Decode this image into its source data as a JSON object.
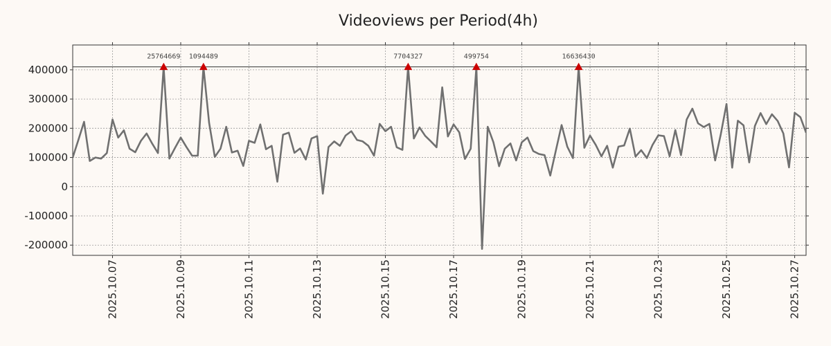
{
  "chart_data": {
    "type": "line",
    "title": "Videoviews per Period(4h)",
    "xlabel": "",
    "ylabel": "",
    "ylim": [
      -235000,
      485000
    ],
    "xlim": [
      "2025-10-05T20:00",
      "2025-10-27T08:00"
    ],
    "x_tick_labels": [
      "2025.10.07",
      "2025.10.09",
      "2025.10.11",
      "2025.10.13",
      "2025.10.15",
      "2025.10.17",
      "2025.10.19",
      "2025.10.21",
      "2025.10.23",
      "2025.10.25",
      "2025.10.27"
    ],
    "y_ticks": [
      -200000,
      -100000,
      0,
      100000,
      200000,
      300000,
      400000
    ],
    "y_tick_labels": [
      "-200000",
      "-100000",
      "0",
      "100000",
      "200000",
      "300000",
      "400000"
    ],
    "cap_line": 410000,
    "grid": true,
    "series": [
      {
        "name": "Videoviews",
        "color": "#707070",
        "x": [
          "2025-10-05T20:00",
          "2025-10-06T00:00",
          "2025-10-06T04:00",
          "2025-10-06T08:00",
          "2025-10-06T12:00",
          "2025-10-06T16:00",
          "2025-10-06T20:00",
          "2025-10-07T00:00",
          "2025-10-07T04:00",
          "2025-10-07T08:00",
          "2025-10-07T12:00",
          "2025-10-07T16:00",
          "2025-10-07T20:00",
          "2025-10-08T00:00",
          "2025-10-08T04:00",
          "2025-10-08T08:00",
          "2025-10-08T12:00",
          "2025-10-08T16:00",
          "2025-10-08T20:00",
          "2025-10-09T00:00",
          "2025-10-09T04:00",
          "2025-10-09T08:00",
          "2025-10-09T12:00",
          "2025-10-09T16:00",
          "2025-10-09T20:00",
          "2025-10-10T00:00",
          "2025-10-10T04:00",
          "2025-10-10T08:00",
          "2025-10-10T12:00",
          "2025-10-10T16:00",
          "2025-10-10T20:00",
          "2025-10-11T00:00",
          "2025-10-11T04:00",
          "2025-10-11T08:00",
          "2025-10-11T12:00",
          "2025-10-11T16:00",
          "2025-10-11T20:00",
          "2025-10-12T00:00",
          "2025-10-12T04:00",
          "2025-10-12T08:00",
          "2025-10-12T12:00",
          "2025-10-12T16:00",
          "2025-10-12T20:00",
          "2025-10-13T00:00",
          "2025-10-13T04:00",
          "2025-10-13T08:00",
          "2025-10-13T12:00",
          "2025-10-13T16:00",
          "2025-10-13T20:00",
          "2025-10-14T00:00",
          "2025-10-14T04:00",
          "2025-10-14T08:00",
          "2025-10-14T12:00",
          "2025-10-14T16:00",
          "2025-10-14T20:00",
          "2025-10-15T00:00",
          "2025-10-15T04:00",
          "2025-10-15T08:00",
          "2025-10-15T12:00",
          "2025-10-15T16:00",
          "2025-10-15T20:00",
          "2025-10-16T00:00",
          "2025-10-16T04:00",
          "2025-10-16T08:00",
          "2025-10-16T12:00",
          "2025-10-16T16:00",
          "2025-10-16T20:00",
          "2025-10-17T00:00",
          "2025-10-17T04:00",
          "2025-10-17T08:00",
          "2025-10-17T12:00",
          "2025-10-17T16:00",
          "2025-10-17T20:00",
          "2025-10-18T00:00",
          "2025-10-18T04:00",
          "2025-10-18T08:00",
          "2025-10-18T12:00",
          "2025-10-18T16:00",
          "2025-10-18T20:00",
          "2025-10-19T00:00",
          "2025-10-19T04:00",
          "2025-10-19T08:00",
          "2025-10-19T12:00",
          "2025-10-19T16:00",
          "2025-10-19T20:00",
          "2025-10-20T00:00",
          "2025-10-20T04:00",
          "2025-10-20T08:00",
          "2025-10-20T12:00",
          "2025-10-20T16:00",
          "2025-10-20T20:00",
          "2025-10-21T00:00",
          "2025-10-21T04:00",
          "2025-10-21T08:00",
          "2025-10-21T12:00",
          "2025-10-21T16:00",
          "2025-10-21T20:00",
          "2025-10-22T00:00",
          "2025-10-22T04:00",
          "2025-10-22T08:00",
          "2025-10-22T12:00",
          "2025-10-22T16:00",
          "2025-10-22T20:00",
          "2025-10-23T00:00",
          "2025-10-23T04:00",
          "2025-10-23T08:00",
          "2025-10-23T12:00",
          "2025-10-23T16:00",
          "2025-10-23T20:00",
          "2025-10-24T00:00",
          "2025-10-24T04:00",
          "2025-10-24T08:00",
          "2025-10-24T12:00",
          "2025-10-24T16:00",
          "2025-10-24T20:00",
          "2025-10-25T00:00",
          "2025-10-25T04:00",
          "2025-10-25T08:00",
          "2025-10-25T12:00",
          "2025-10-25T16:00",
          "2025-10-25T20:00",
          "2025-10-26T00:00",
          "2025-10-26T04:00",
          "2025-10-26T08:00",
          "2025-10-26T12:00",
          "2025-10-26T16:00",
          "2025-10-26T20:00",
          "2025-10-27T00:00",
          "2025-10-27T04:00",
          "2025-10-27T08:00"
        ],
        "values": [
          100000,
          160000,
          222000,
          88000,
          100000,
          96000,
          115000,
          230000,
          168000,
          193000,
          130000,
          118000,
          157000,
          182000,
          147000,
          115000,
          410000,
          96000,
          133000,
          168000,
          136000,
          106000,
          106000,
          410000,
          218000,
          102000,
          130000,
          205000,
          117000,
          123000,
          71000,
          157000,
          150000,
          213000,
          128000,
          140000,
          17000,
          178000,
          185000,
          116000,
          131000,
          93000,
          165000,
          173000,
          -24000,
          136000,
          155000,
          140000,
          175000,
          190000,
          160000,
          155000,
          140000,
          106000,
          215000,
          190000,
          205000,
          135000,
          126000,
          410000,
          165000,
          203000,
          174000,
          155000,
          135000,
          340000,
          172000,
          213000,
          186000,
          95000,
          130000,
          410000,
          -213000,
          205000,
          152000,
          70000,
          130000,
          148000,
          90000,
          152000,
          168000,
          122000,
          112000,
          108000,
          38000,
          125000,
          211000,
          137000,
          98000,
          410000,
          133000,
          175000,
          143000,
          104000,
          140000,
          65000,
          137000,
          141000,
          199000,
          103000,
          125000,
          98000,
          143000,
          176000,
          173000,
          104000,
          194000,
          108000,
          230000,
          267000,
          217000,
          204000,
          215000,
          90000,
          180000,
          283000,
          65000,
          226000,
          210000,
          83000,
          208000,
          252000,
          214000,
          248000,
          225000,
          182000,
          66000,
          253000,
          238000,
          185000
        ]
      }
    ],
    "peaks": [
      {
        "x": "2025-10-08T12:00",
        "y": 410000,
        "label": "25764669"
      },
      {
        "x": "2025-10-09T16:00",
        "y": 410000,
        "label": "1094489"
      },
      {
        "x": "2025-10-15T16:00",
        "y": 410000,
        "label": "7704327"
      },
      {
        "x": "2025-10-17T16:00",
        "y": 410000,
        "label": "499754"
      },
      {
        "x": "2025-10-20T16:00",
        "y": 410000,
        "label": "16636430"
      }
    ],
    "peak_marker_color": "#cc0000"
  }
}
